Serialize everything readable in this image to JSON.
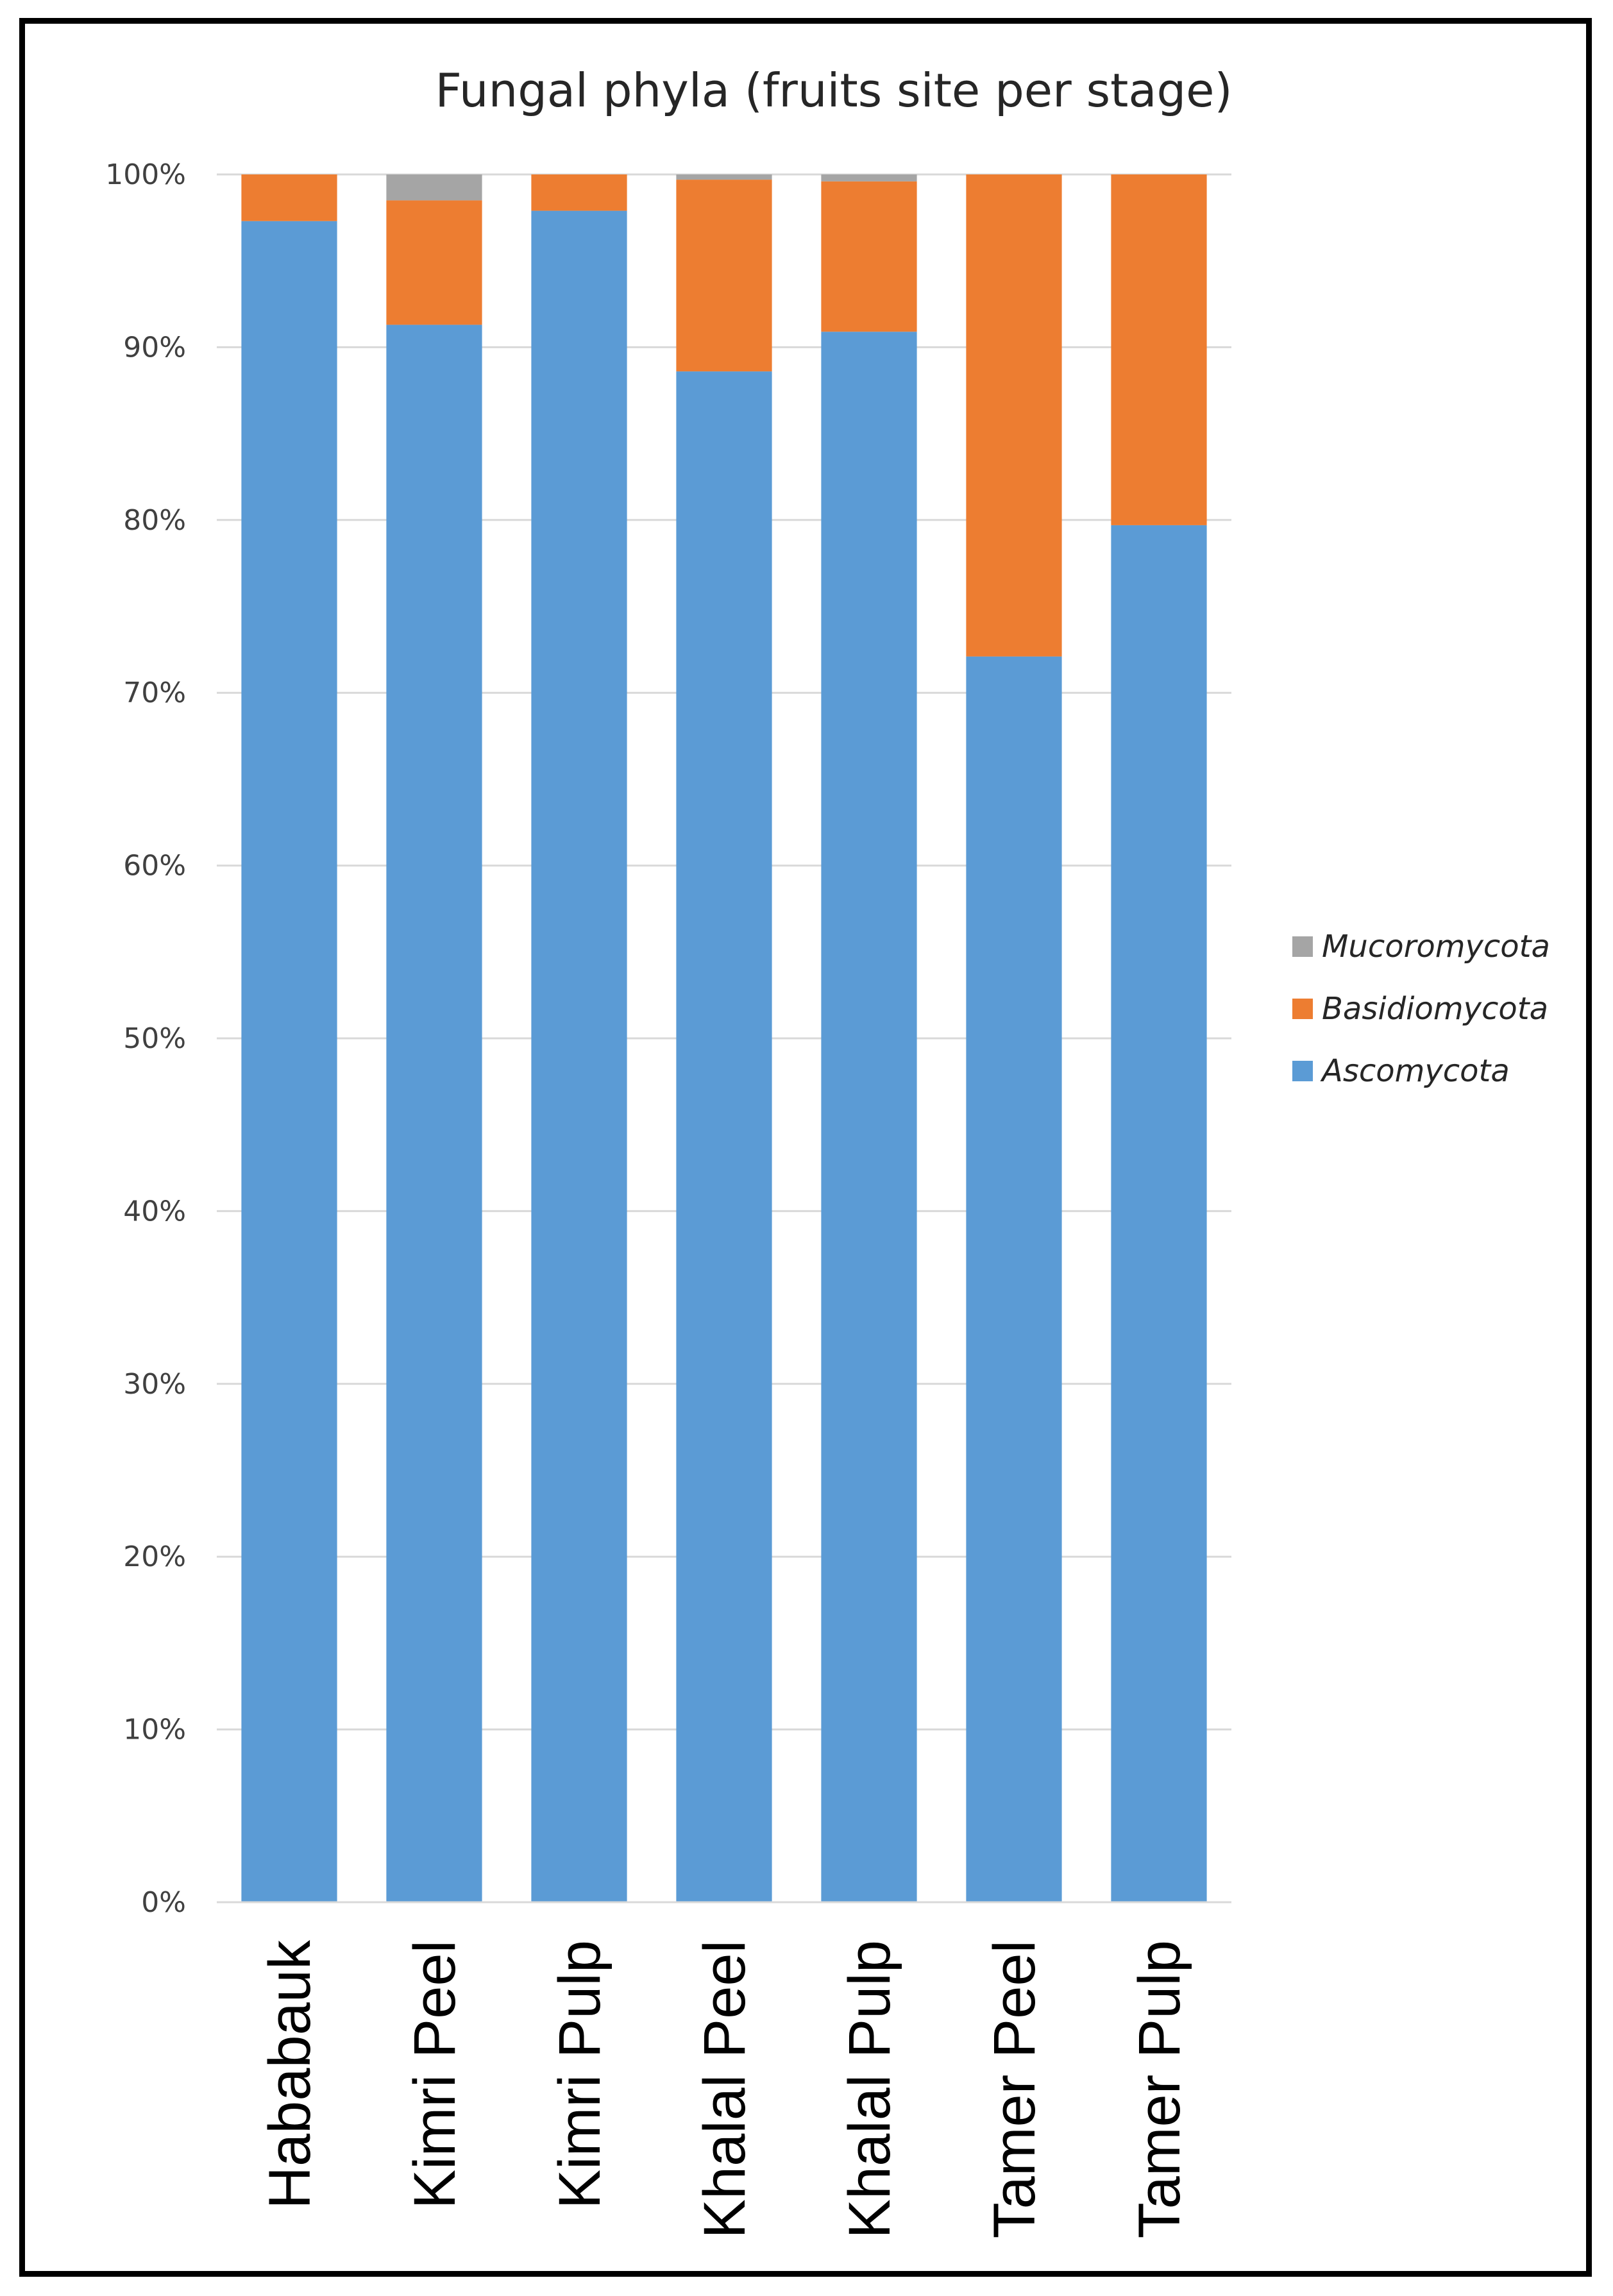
{
  "chart_data": {
    "type": "bar",
    "stacked": true,
    "normalized": true,
    "title": "Fungal phyla (fruits site per stage)",
    "xlabel": "",
    "ylabel": "",
    "ylim": [
      0,
      100
    ],
    "y_ticks": [
      "0%",
      "10%",
      "20%",
      "30%",
      "40%",
      "50%",
      "60%",
      "70%",
      "80%",
      "90%",
      "100%"
    ],
    "grid": true,
    "legend_position": "right",
    "categories": [
      "Hababauk",
      "Kimri Peel",
      "Kimri Pulp",
      "Khalal Peel",
      "Khalal Pulp",
      "Tamer Peel",
      "Tamer Pulp"
    ],
    "series": [
      {
        "name": "Ascomycota",
        "color": "#5B9BD5",
        "values": [
          97.3,
          91.3,
          97.9,
          88.6,
          90.9,
          72.1,
          79.7
        ]
      },
      {
        "name": "Basidiomycota",
        "color": "#ED7D31",
        "values": [
          2.7,
          7.2,
          2.1,
          11.1,
          8.7,
          27.9,
          20.3
        ]
      },
      {
        "name": "Mucoromycota",
        "color": "#A5A5A5",
        "values": [
          0.0,
          1.5,
          0.0,
          0.3,
          0.4,
          0.0,
          0.0
        ]
      }
    ],
    "legend_order": [
      "Mucoromycota",
      "Basidiomycota",
      "Ascomycota"
    ]
  }
}
